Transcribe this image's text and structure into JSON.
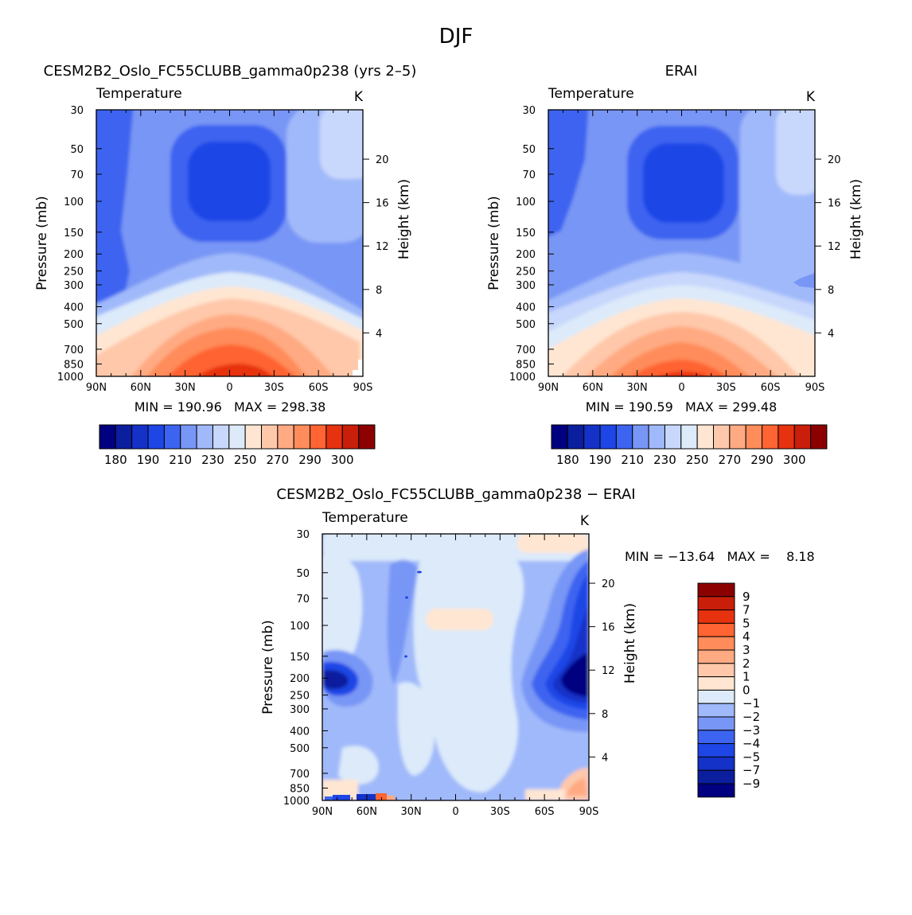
{
  "page_title": "DJF",
  "colors": {
    "temperature_scale": [
      "#000080",
      "#0a1e9e",
      "#1432c8",
      "#1e46e6",
      "#3c64f0",
      "#7896f5",
      "#a0b9fa",
      "#c8d7fc",
      "#dceafa",
      "#ffe6d2",
      "#ffc8aa",
      "#ffaa82",
      "#ff8c5a",
      "#ff6432",
      "#e6320f",
      "#c81e0a",
      "#8c0000"
    ],
    "diff_scale": [
      "#000080",
      "#0a1e9e",
      "#1432c8",
      "#1e46e6",
      "#3c64f0",
      "#7896f5",
      "#a0b9fa",
      "#dceafa",
      "#ffe6d2",
      "#ffc8aa",
      "#ffaa82",
      "#ff8c5a",
      "#ff6432",
      "#e6320f",
      "#c81e0a",
      "#8c0000"
    ]
  },
  "chart_data": [
    {
      "type": "heatmap",
      "id": "model",
      "title": "CESM2B2_Oslo_FC55CLUBB_gamma0p238 (yrs 2–5)",
      "subtitle_left": "Temperature",
      "subtitle_right": "K",
      "xlabel": "",
      "ylabel": "Pressure (mb)",
      "ylabel_right": "Height (km)",
      "x_ticks": [
        "90N",
        "60N",
        "30N",
        "0",
        "30S",
        "60S",
        "90S"
      ],
      "y_ticks": [
        30,
        50,
        70,
        100,
        150,
        200,
        250,
        300,
        400,
        500,
        700,
        850,
        1000
      ],
      "y_ticks_right": [
        4,
        8,
        12,
        16,
        20
      ],
      "min_max_text": "MIN = 190.96   MAX = 298.38",
      "colorbar_labels": [
        "180",
        "190",
        "210",
        "230",
        "250",
        "270",
        "290",
        "300"
      ]
    },
    {
      "type": "heatmap",
      "id": "obs",
      "title": "ERAI",
      "subtitle_left": "Temperature",
      "subtitle_right": "K",
      "xlabel": "",
      "ylabel": "Pressure (mb)",
      "ylabel_right": "Height (km)",
      "x_ticks": [
        "90N",
        "60N",
        "30N",
        "0",
        "30S",
        "60S",
        "90S"
      ],
      "y_ticks": [
        30,
        50,
        70,
        100,
        150,
        200,
        250,
        300,
        400,
        500,
        700,
        850,
        1000
      ],
      "y_ticks_right": [
        4,
        8,
        12,
        16,
        20
      ],
      "min_max_text": "MIN = 190.59   MAX = 299.48",
      "colorbar_labels": [
        "180",
        "190",
        "210",
        "230",
        "250",
        "270",
        "290",
        "300"
      ]
    },
    {
      "type": "heatmap",
      "id": "diff",
      "title": "CESM2B2_Oslo_FC55CLUBB_gamma0p238 − ERAI",
      "subtitle_left": "Temperature",
      "subtitle_right": "K",
      "xlabel": "",
      "ylabel": "Pressure (mb)",
      "ylabel_right": "Height (km)",
      "x_ticks": [
        "90N",
        "60N",
        "30N",
        "0",
        "30S",
        "60S",
        "90S"
      ],
      "y_ticks": [
        30,
        50,
        70,
        100,
        150,
        200,
        250,
        300,
        400,
        500,
        700,
        850,
        1000
      ],
      "y_ticks_right": [
        4,
        8,
        12,
        16,
        20
      ],
      "min_max_text": "MIN = −13.64   MAX =    8.18",
      "colorbar_labels": [
        "9",
        "7",
        "5",
        "4",
        "3",
        "2",
        "1",
        "0",
        "−1",
        "−2",
        "−3",
        "−4",
        "−5",
        "−7",
        "−9"
      ]
    }
  ]
}
